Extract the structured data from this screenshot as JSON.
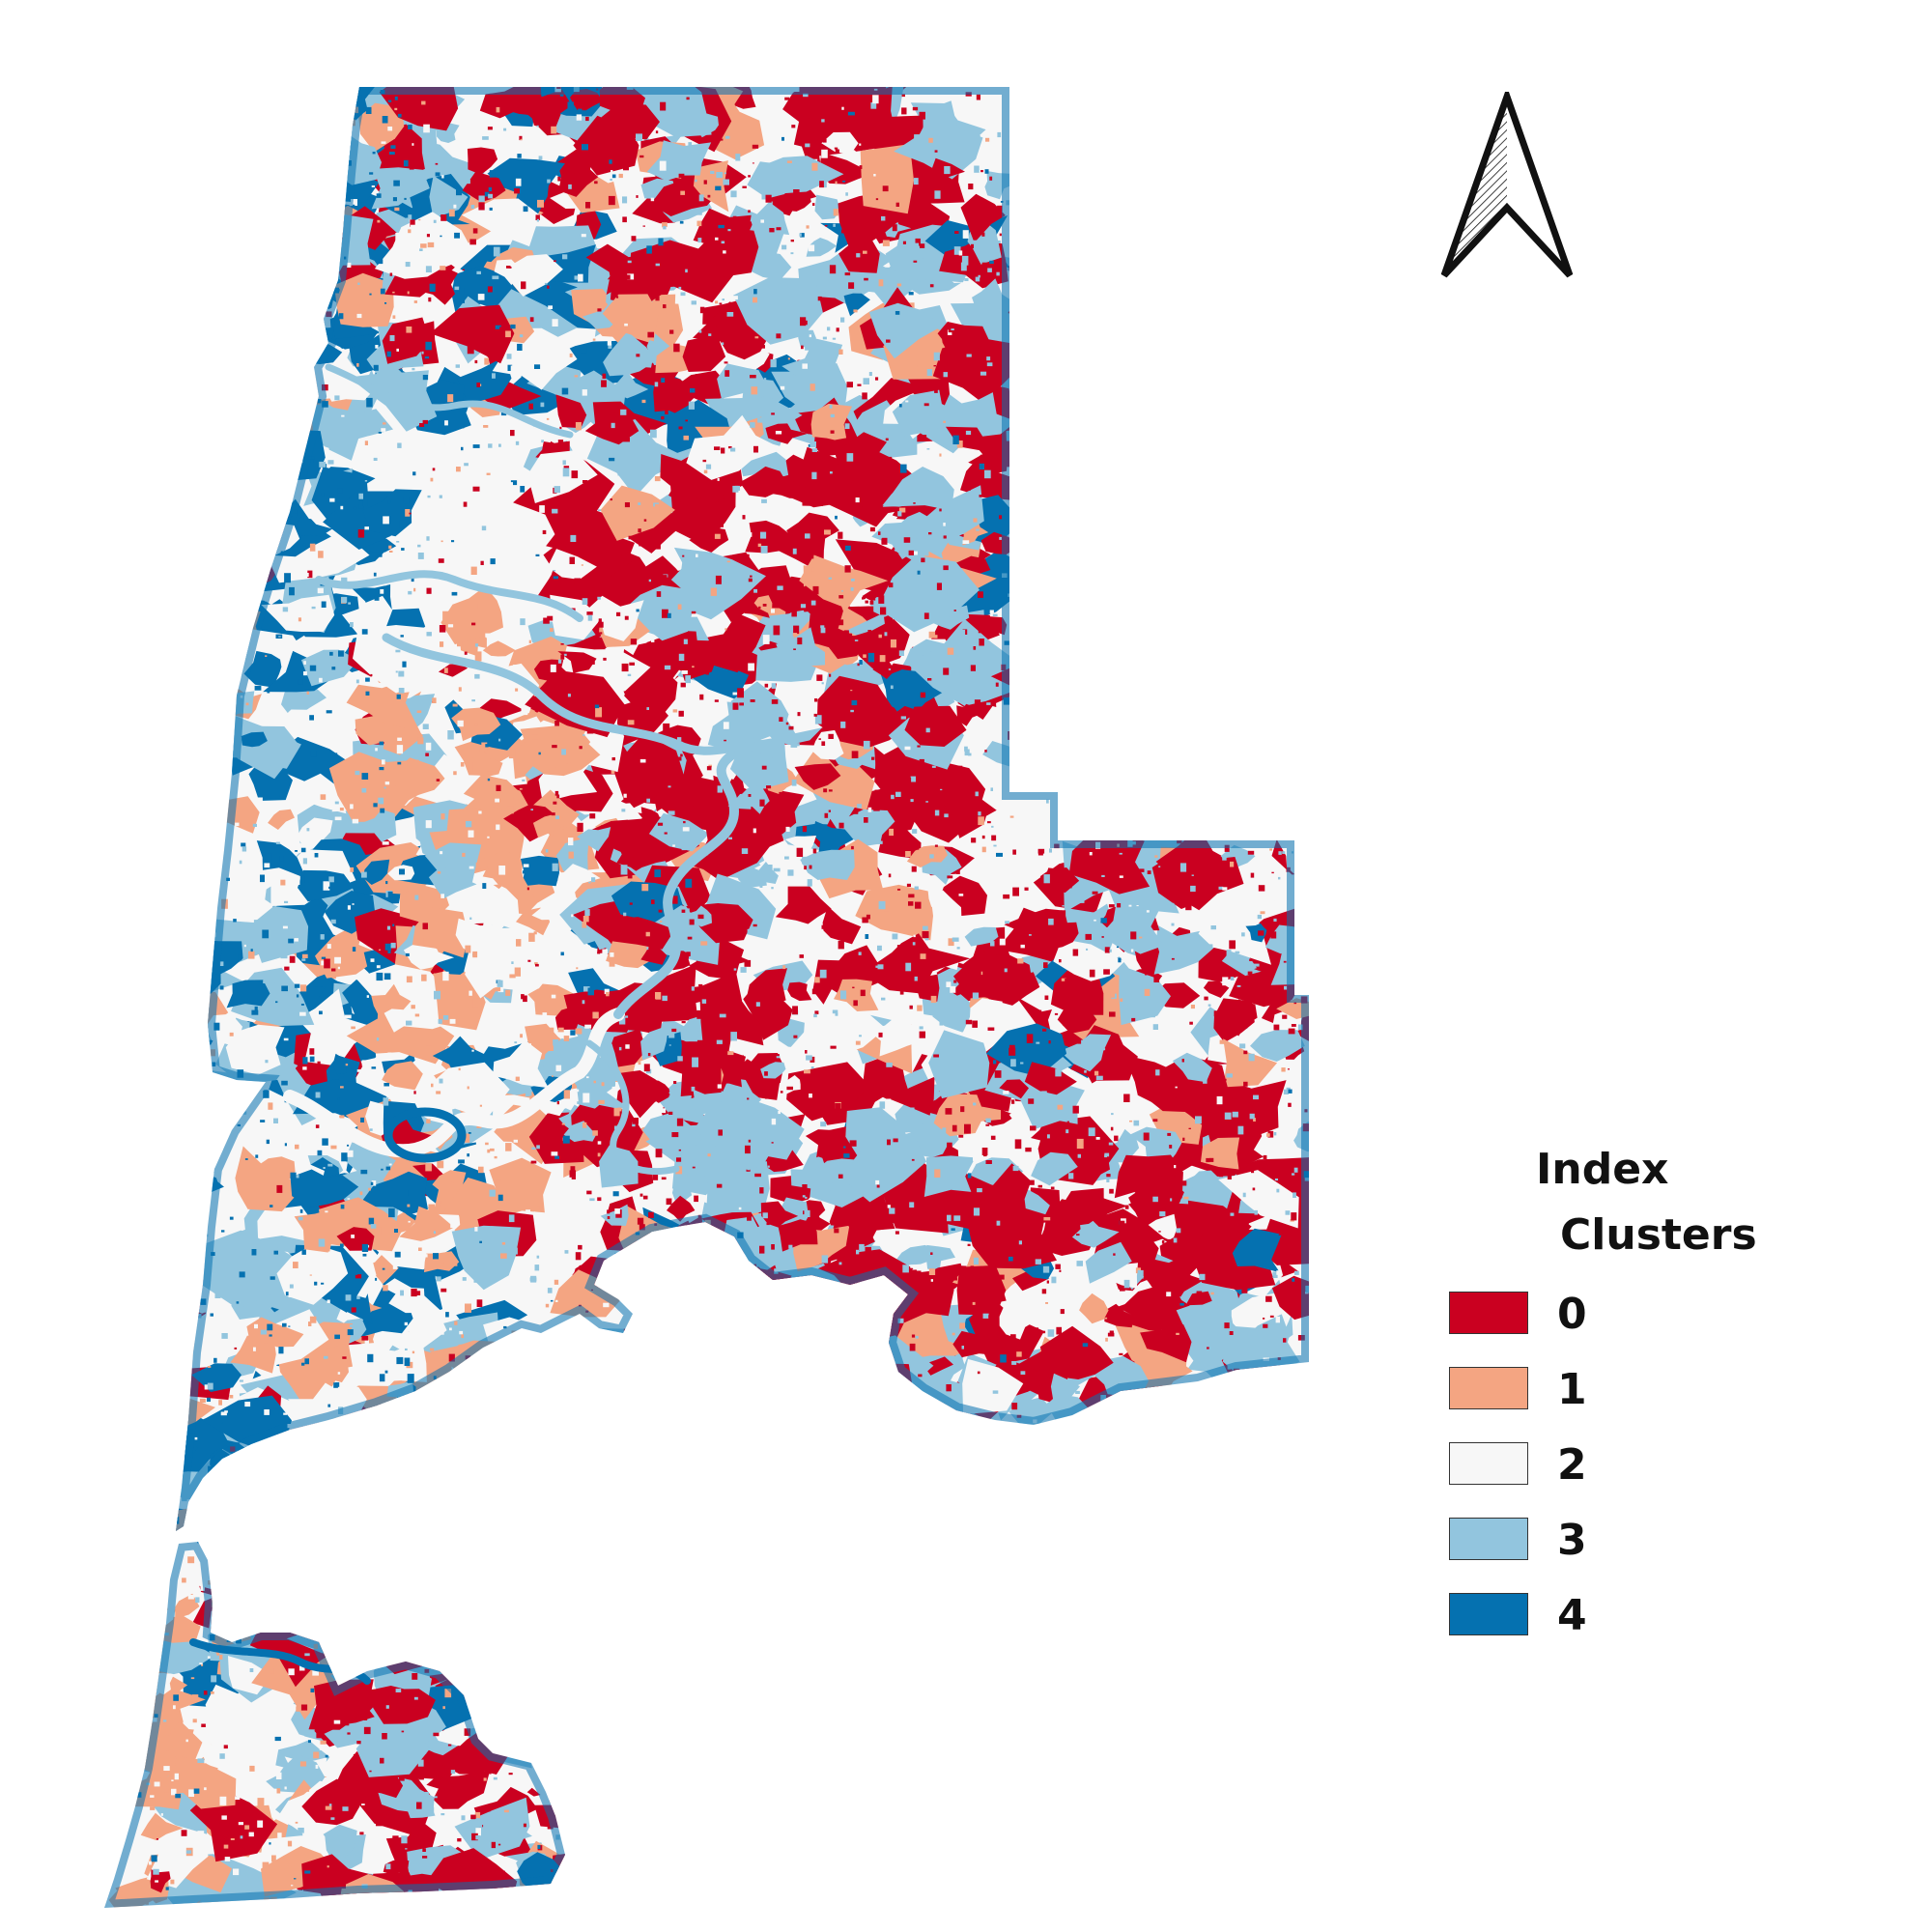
{
  "colors": {
    "cluster_0": "#ca0020",
    "cluster_1": "#f4a582",
    "cluster_2": "#f7f7f7",
    "cluster_3": "#92c5de",
    "cluster_4": "#0571b0"
  },
  "north_arrow": {
    "icon": "north-arrow-icon"
  },
  "legend": {
    "title_line1": "Index",
    "title_line2": "Clusters",
    "items": [
      {
        "label": "0",
        "color": "#ca0020"
      },
      {
        "label": "1",
        "color": "#f4a582"
      },
      {
        "label": "2",
        "color": "#f7f7f7"
      },
      {
        "label": "3",
        "color": "#92c5de"
      },
      {
        "label": "4",
        "color": "#0571b0"
      }
    ]
  }
}
